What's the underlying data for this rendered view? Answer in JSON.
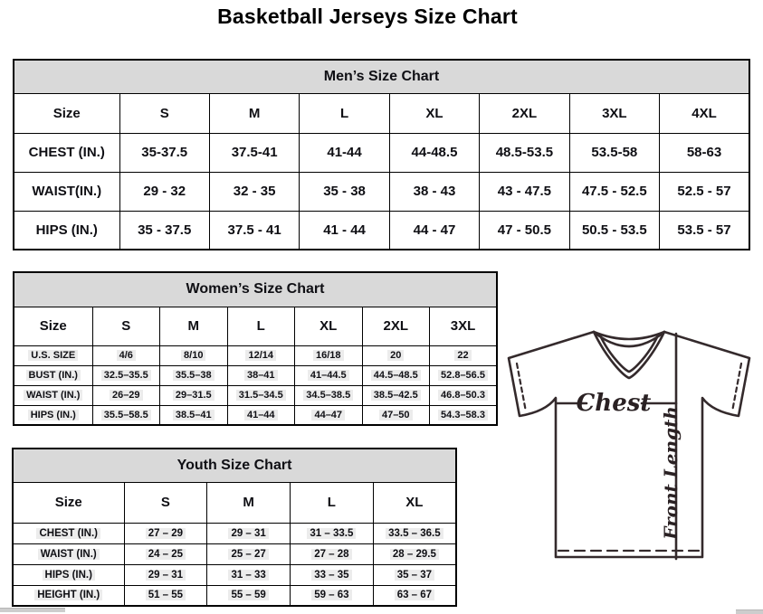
{
  "title": "Basketball Jerseys Size Chart",
  "mens": {
    "title": "Men’s Size Chart",
    "highlight": false,
    "columns": [
      "Size",
      "S",
      "M",
      "L",
      "XL",
      "2XL",
      "3XL",
      "4XL"
    ],
    "rows": [
      {
        "label": "CHEST (IN.)",
        "values": [
          "35-37.5",
          "37.5-41",
          "41-44",
          "44-48.5",
          "48.5-53.5",
          "53.5-58",
          "58-63"
        ]
      },
      {
        "label": "WAIST(IN.)",
        "values": [
          "29 - 32",
          "32 - 35",
          "35 - 38",
          "38 - 43",
          "43 - 47.5",
          "47.5 - 52.5",
          "52.5 - 57"
        ]
      },
      {
        "label": "HIPS (IN.)",
        "values": [
          "35 - 37.5",
          "37.5 - 41",
          "41 - 44",
          "44 - 47",
          "47 - 50.5",
          "50.5 - 53.5",
          "53.5 - 57"
        ]
      }
    ]
  },
  "womens": {
    "title": "Women’s Size Chart",
    "highlight": true,
    "columns": [
      "Size",
      "S",
      "M",
      "L",
      "XL",
      "2XL",
      "3XL"
    ],
    "rows": [
      {
        "label": "U.S. SIZE",
        "values": [
          "4/6",
          "8/10",
          "12/14",
          "16/18",
          "20",
          "22"
        ]
      },
      {
        "label": "BUST (IN.)",
        "values": [
          "32.5–35.5",
          "35.5–38",
          "38–41",
          "41–44.5",
          "44.5–48.5",
          "52.8–56.5"
        ]
      },
      {
        "label": "WAIST (IN.)",
        "values": [
          "26–29",
          "29–31.5",
          "31.5–34.5",
          "34.5–38.5",
          "38.5–42.5",
          "46.8–50.3"
        ]
      },
      {
        "label": "HIPS (IN.)",
        "values": [
          "35.5–58.5",
          "38.5–41",
          "41–44",
          "44–47",
          "47–50",
          "54.3–58.3"
        ]
      }
    ]
  },
  "youth": {
    "title": "Youth Size Chart",
    "highlight": true,
    "columns": [
      "Size",
      "S",
      "M",
      "L",
      "XL"
    ],
    "rows": [
      {
        "label": "CHEST (IN.)",
        "values": [
          "27 – 29",
          "29 – 31",
          "31 – 33.5",
          "33.5 – 36.5"
        ]
      },
      {
        "label": "WAIST (IN.)",
        "values": [
          "24 – 25",
          "25 – 27",
          "27 – 28",
          "28 – 29.5"
        ]
      },
      {
        "label": "HIPS (IN.)",
        "values": [
          "29 – 31",
          "31 – 33",
          "33 – 35",
          "35 – 37"
        ]
      },
      {
        "label": "HEIGHT (IN.)",
        "values": [
          "51 – 55",
          "55 – 59",
          "59 – 63",
          "63 – 67"
        ]
      }
    ]
  },
  "diagram": {
    "chest_label": "Chest",
    "front_length_label": "Front Length"
  },
  "colors": {
    "table_header_bg": "#d9d9d9",
    "table_border": "#000000",
    "jersey_line": "#342a2c",
    "value_highlight": "#ececec"
  }
}
